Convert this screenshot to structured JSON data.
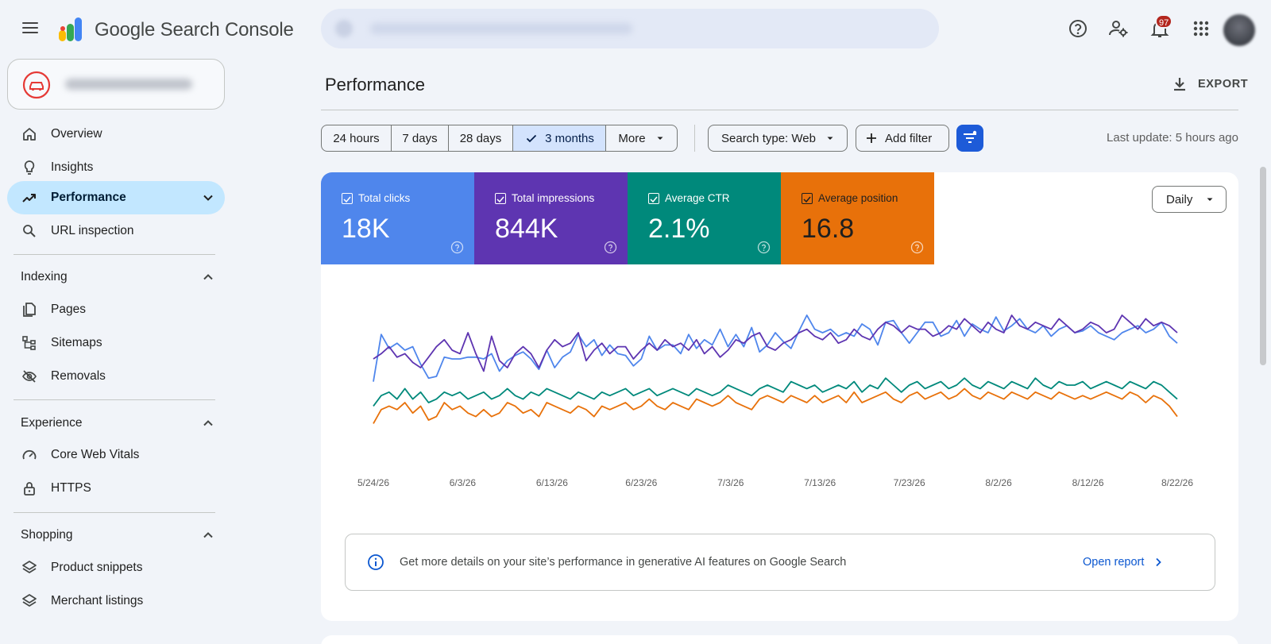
{
  "app": {
    "brand": "Google Search Console",
    "notification_count": "97"
  },
  "sidebar": {
    "top_items": [
      {
        "label": "Overview",
        "icon": "home-icon"
      },
      {
        "label": "Insights",
        "icon": "lightbulb-icon"
      },
      {
        "label": "Performance",
        "icon": "trending-up-icon",
        "active": true
      },
      {
        "label": "URL inspection",
        "icon": "search-icon"
      }
    ],
    "sections": [
      {
        "title": "Indexing",
        "items": [
          {
            "label": "Pages",
            "icon": "pages-icon"
          },
          {
            "label": "Sitemaps",
            "icon": "sitemap-icon"
          },
          {
            "label": "Removals",
            "icon": "eye-off-icon"
          }
        ]
      },
      {
        "title": "Experience",
        "items": [
          {
            "label": "Core Web Vitals",
            "icon": "gauge-icon"
          },
          {
            "label": "HTTPS",
            "icon": "lock-icon"
          }
        ]
      },
      {
        "title": "Shopping",
        "items": [
          {
            "label": "Product snippets",
            "icon": "layers-icon"
          },
          {
            "label": "Merchant listings",
            "icon": "layers-icon"
          }
        ]
      }
    ]
  },
  "main": {
    "title": "Performance",
    "export_label": "EXPORT",
    "ranges": [
      "24 hours",
      "7 days",
      "28 days",
      "3 months",
      "More"
    ],
    "active_range": "3 months",
    "search_type": "Search type: Web",
    "add_filter": "Add filter",
    "last_update": "Last update: 5 hours ago",
    "metrics": [
      {
        "label": "Total clicks",
        "value": "18K",
        "color": "#4f86ec"
      },
      {
        "label": "Total impressions",
        "value": "844K",
        "color": "#5e35b1"
      },
      {
        "label": "Average CTR",
        "value": "2.1%",
        "color": "#00897b"
      },
      {
        "label": "Average position",
        "value": "16.8",
        "color": "#e8710a"
      }
    ],
    "granularity": "Daily",
    "info_text": "Get more details on your site’s performance in generative AI features on Google Search",
    "info_link": "Open report"
  },
  "chart_data": {
    "type": "line",
    "x_tick_labels": [
      "5/24/26",
      "6/3/26",
      "6/13/26",
      "6/23/26",
      "7/3/26",
      "7/13/26",
      "7/23/26",
      "8/2/26",
      "8/12/26",
      "8/22/26"
    ],
    "y_axis_visible": false,
    "legend": "metric cards above chart",
    "series": [
      {
        "name": "Total clicks",
        "color": "#4f86ec",
        "values": [
          0.42,
          0.69,
          0.61,
          0.64,
          0.6,
          0.62,
          0.52,
          0.44,
          0.45,
          0.56,
          0.55,
          0.55,
          0.56,
          0.56,
          0.55,
          0.58,
          0.48,
          0.54,
          0.57,
          0.59,
          0.55,
          0.49,
          0.6,
          0.5,
          0.56,
          0.59,
          0.69,
          0.62,
          0.66,
          0.57,
          0.63,
          0.58,
          0.57,
          0.51,
          0.55,
          0.68,
          0.6,
          0.63,
          0.63,
          0.58,
          0.69,
          0.61,
          0.66,
          0.63,
          0.72,
          0.62,
          0.69,
          0.62,
          0.73,
          0.59,
          0.63,
          0.7,
          0.65,
          0.61,
          0.71,
          0.8,
          0.72,
          0.7,
          0.72,
          0.68,
          0.7,
          0.68,
          0.75,
          0.72,
          0.63,
          0.76,
          0.77,
          0.7,
          0.64,
          0.7,
          0.76,
          0.76,
          0.68,
          0.7,
          0.77,
          0.68,
          0.75,
          0.72,
          0.7,
          0.79,
          0.71,
          0.74,
          0.78,
          0.72,
          0.7,
          0.74,
          0.68,
          0.72,
          0.74,
          0.7,
          0.71,
          0.74,
          0.7,
          0.68,
          0.66,
          0.7,
          0.72,
          0.74,
          0.7,
          0.72,
          0.76,
          0.68,
          0.64
        ]
      },
      {
        "name": "Total impressions",
        "color": "#5e35b1",
        "values": [
          0.55,
          0.58,
          0.62,
          0.56,
          0.58,
          0.53,
          0.5,
          0.56,
          0.62,
          0.66,
          0.6,
          0.58,
          0.7,
          0.58,
          0.48,
          0.68,
          0.54,
          0.5,
          0.58,
          0.62,
          0.58,
          0.5,
          0.6,
          0.66,
          0.62,
          0.64,
          0.7,
          0.54,
          0.6,
          0.64,
          0.58,
          0.62,
          0.62,
          0.55,
          0.6,
          0.64,
          0.6,
          0.66,
          0.62,
          0.64,
          0.6,
          0.66,
          0.58,
          0.62,
          0.56,
          0.6,
          0.66,
          0.64,
          0.68,
          0.7,
          0.62,
          0.6,
          0.64,
          0.66,
          0.7,
          0.72,
          0.68,
          0.66,
          0.7,
          0.64,
          0.66,
          0.72,
          0.68,
          0.66,
          0.72,
          0.76,
          0.74,
          0.7,
          0.74,
          0.72,
          0.72,
          0.68,
          0.7,
          0.74,
          0.72,
          0.78,
          0.74,
          0.7,
          0.76,
          0.72,
          0.7,
          0.8,
          0.74,
          0.72,
          0.76,
          0.74,
          0.72,
          0.78,
          0.74,
          0.7,
          0.72,
          0.76,
          0.74,
          0.7,
          0.72,
          0.8,
          0.76,
          0.72,
          0.78,
          0.74,
          0.76,
          0.74,
          0.7
        ]
      },
      {
        "name": "Average CTR",
        "color": "#00897b",
        "values": [
          0.28,
          0.34,
          0.36,
          0.32,
          0.38,
          0.32,
          0.36,
          0.3,
          0.32,
          0.36,
          0.34,
          0.36,
          0.32,
          0.34,
          0.36,
          0.32,
          0.34,
          0.38,
          0.34,
          0.32,
          0.36,
          0.34,
          0.38,
          0.36,
          0.34,
          0.32,
          0.36,
          0.34,
          0.32,
          0.36,
          0.34,
          0.36,
          0.38,
          0.34,
          0.36,
          0.38,
          0.34,
          0.36,
          0.38,
          0.36,
          0.34,
          0.38,
          0.36,
          0.34,
          0.36,
          0.4,
          0.38,
          0.36,
          0.34,
          0.38,
          0.4,
          0.38,
          0.36,
          0.42,
          0.4,
          0.38,
          0.4,
          0.36,
          0.38,
          0.4,
          0.38,
          0.42,
          0.36,
          0.4,
          0.38,
          0.44,
          0.4,
          0.36,
          0.4,
          0.42,
          0.38,
          0.4,
          0.42,
          0.38,
          0.4,
          0.44,
          0.4,
          0.38,
          0.42,
          0.4,
          0.38,
          0.42,
          0.4,
          0.38,
          0.44,
          0.4,
          0.38,
          0.42,
          0.4,
          0.4,
          0.42,
          0.38,
          0.4,
          0.42,
          0.4,
          0.38,
          0.42,
          0.4,
          0.38,
          0.42,
          0.4,
          0.36,
          0.32
        ]
      },
      {
        "name": "Average position",
        "color": "#e8710a",
        "values": [
          0.18,
          0.26,
          0.28,
          0.26,
          0.3,
          0.24,
          0.28,
          0.2,
          0.22,
          0.3,
          0.26,
          0.28,
          0.24,
          0.22,
          0.26,
          0.22,
          0.24,
          0.3,
          0.28,
          0.24,
          0.26,
          0.22,
          0.3,
          0.28,
          0.26,
          0.24,
          0.28,
          0.26,
          0.22,
          0.28,
          0.26,
          0.28,
          0.3,
          0.26,
          0.28,
          0.32,
          0.28,
          0.26,
          0.3,
          0.28,
          0.26,
          0.32,
          0.3,
          0.28,
          0.3,
          0.34,
          0.3,
          0.28,
          0.26,
          0.32,
          0.34,
          0.32,
          0.3,
          0.34,
          0.32,
          0.3,
          0.34,
          0.3,
          0.32,
          0.34,
          0.3,
          0.36,
          0.3,
          0.32,
          0.34,
          0.36,
          0.32,
          0.3,
          0.34,
          0.36,
          0.32,
          0.34,
          0.36,
          0.32,
          0.34,
          0.38,
          0.34,
          0.32,
          0.36,
          0.34,
          0.32,
          0.36,
          0.34,
          0.32,
          0.36,
          0.34,
          0.32,
          0.36,
          0.34,
          0.32,
          0.34,
          0.32,
          0.34,
          0.36,
          0.34,
          0.32,
          0.36,
          0.34,
          0.3,
          0.34,
          0.32,
          0.28,
          0.22
        ]
      }
    ]
  }
}
